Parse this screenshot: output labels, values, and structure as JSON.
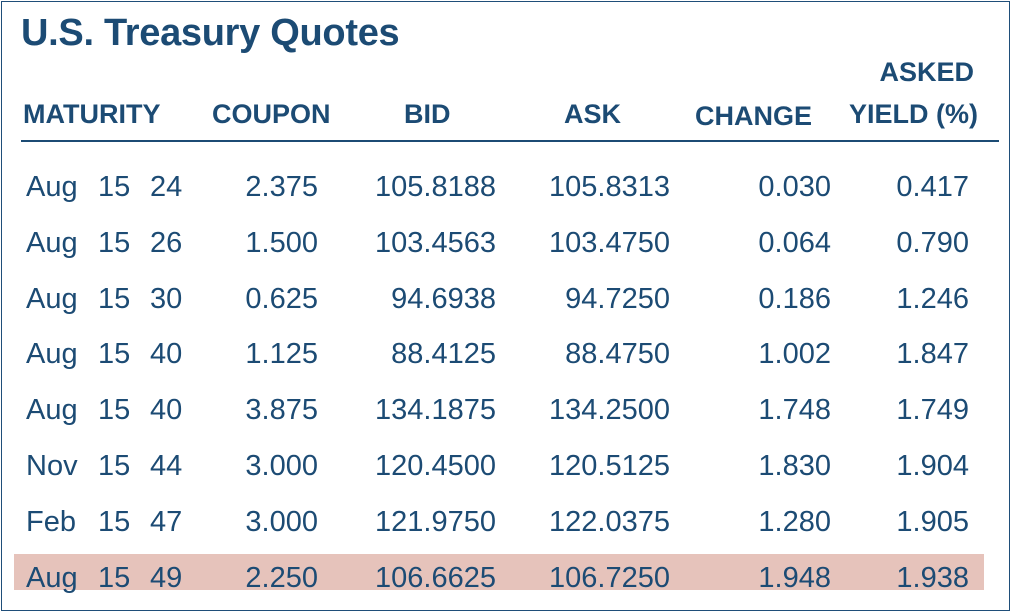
{
  "title": "U.S. Treasury Quotes",
  "headers": {
    "maturity": "MATURITY",
    "coupon": "COUPON",
    "bid": "BID",
    "ask": "ASK",
    "change": "CHANGE",
    "yield_line1": "ASKED",
    "yield_line2": "YIELD (%)"
  },
  "rows": [
    {
      "month": "Aug",
      "day": "15",
      "year": "24",
      "coupon": "2.375",
      "bid": "105.8188",
      "ask": "105.8313",
      "change": "0.030",
      "yield": "0.417"
    },
    {
      "month": "Aug",
      "day": "15",
      "year": "26",
      "coupon": "1.500",
      "bid": "103.4563",
      "ask": "103.4750",
      "change": "0.064",
      "yield": "0.790"
    },
    {
      "month": "Aug",
      "day": "15",
      "year": "30",
      "coupon": "0.625",
      "bid": "94.6938",
      "ask": "94.7250",
      "change": "0.186",
      "yield": "1.246"
    },
    {
      "month": "Aug",
      "day": "15",
      "year": "40",
      "coupon": "1.125",
      "bid": "88.4125",
      "ask": "88.4750",
      "change": "1.002",
      "yield": "1.847"
    },
    {
      "month": "Aug",
      "day": "15",
      "year": "40",
      "coupon": "3.875",
      "bid": "134.1875",
      "ask": "134.2500",
      "change": "1.748",
      "yield": "1.749"
    },
    {
      "month": "Nov",
      "day": "15",
      "year": "44",
      "coupon": "3.000",
      "bid": "120.4500",
      "ask": "120.5125",
      "change": "1.830",
      "yield": "1.904"
    },
    {
      "month": "Feb",
      "day": "15",
      "year": "47",
      "coupon": "3.000",
      "bid": "121.9750",
      "ask": "122.0375",
      "change": "1.280",
      "yield": "1.905"
    },
    {
      "month": "Aug",
      "day": "15",
      "year": "49",
      "coupon": "2.250",
      "bid": "106.6625",
      "ask": "106.7250",
      "change": "1.948",
      "yield": "1.938"
    }
  ],
  "highlighted_row_index": 7,
  "colors": {
    "text": "#1c4b74",
    "border": "#1f4e79",
    "highlight": "#e6c3bb",
    "background": "#ffffff"
  }
}
